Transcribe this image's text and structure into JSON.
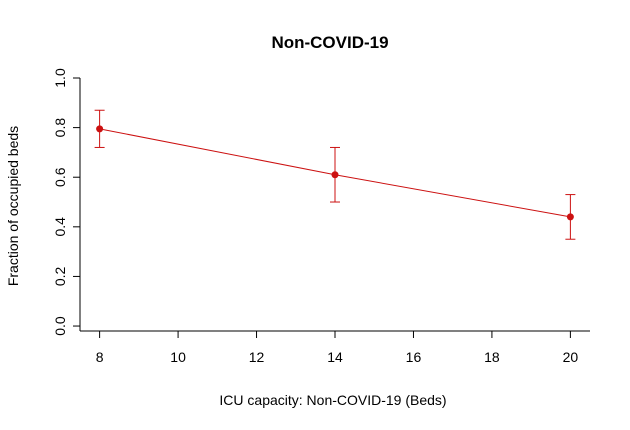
{
  "chart_data": {
    "type": "line",
    "title": "Non-COVID-19",
    "xlabel": "ICU capacity: Non-COVID-19 (Beds)",
    "ylabel": "Fraction of occupied beds",
    "xlim": [
      7.5,
      20.5
    ],
    "ylim": [
      -0.02,
      1.0
    ],
    "xticks": [
      8,
      10,
      12,
      14,
      16,
      18,
      20
    ],
    "yticks": [
      0.0,
      0.2,
      0.4,
      0.6,
      0.8,
      1.0
    ],
    "x_tick_labels": [
      "8",
      "10",
      "12",
      "14",
      "16",
      "18",
      "20"
    ],
    "y_tick_labels": [
      "0.0",
      "0.2",
      "0.4",
      "0.6",
      "0.8",
      "1.0"
    ],
    "grid": false,
    "series": [
      {
        "color": "#cc1111",
        "x": [
          8,
          14,
          20
        ],
        "y": [
          0.795,
          0.61,
          0.44
        ],
        "err_low": [
          0.72,
          0.5,
          0.35
        ],
        "err_high": [
          0.87,
          0.72,
          0.53
        ]
      }
    ]
  }
}
